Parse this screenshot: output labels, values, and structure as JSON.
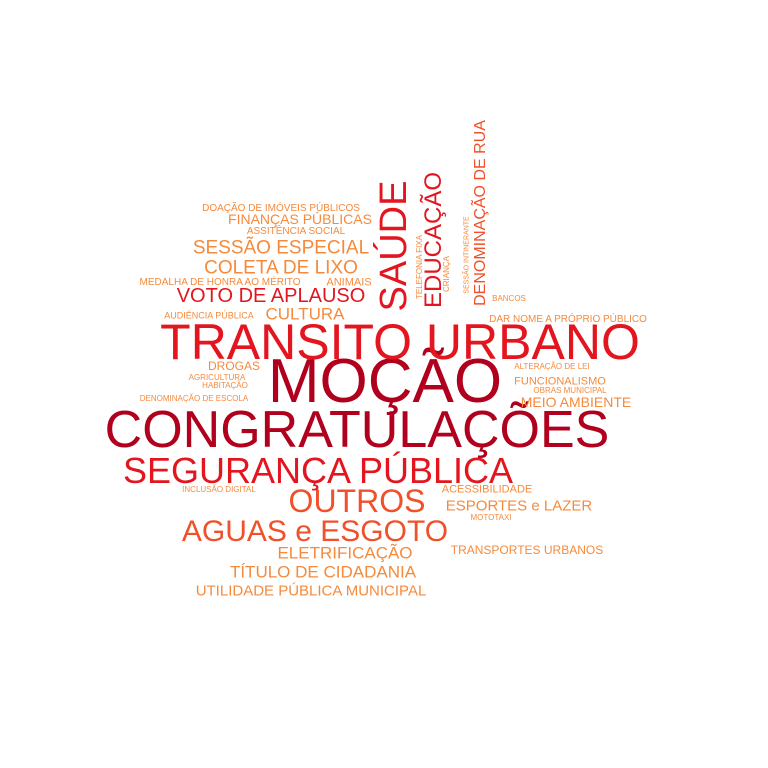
{
  "palette": {
    "dark_red": "#b0001e",
    "red": "#e3151f",
    "orange_red": "#f0502a",
    "orange": "#f58a3c"
  },
  "words": [
    {
      "text": "CONGRATULAÇÕES",
      "color": "#b0001e",
      "weight": 52
    },
    {
      "text": "MOÇÃO",
      "color": "#b0001e",
      "weight": 62
    },
    {
      "text": "TRANSITO URBANO",
      "color": "#e3151f",
      "weight": 50
    },
    {
      "text": "SEGURANÇA PÚBLICA",
      "color": "#e3151f",
      "weight": 36
    },
    {
      "text": "SAÚDE",
      "color": "#e3151f",
      "weight": 38
    },
    {
      "text": "EDUCAÇÃO",
      "color": "#e3151f",
      "weight": 24
    },
    {
      "text": "OUTROS",
      "color": "#f0502a",
      "weight": 32
    },
    {
      "text": "AGUAS e ESGOTO",
      "color": "#f0502a",
      "weight": 30
    },
    {
      "text": "VOTO DE APLAUSO",
      "color": "#e3151f",
      "weight": 20
    },
    {
      "text": "DENOMINAÇÃO DE RUA",
      "color": "#f0502a",
      "weight": 16
    },
    {
      "text": "SESSÃO ESPECIAL",
      "color": "#f58a3c",
      "weight": 19
    },
    {
      "text": "COLETA DE LIXO",
      "color": "#f58a3c",
      "weight": 19
    },
    {
      "text": "CULTURA",
      "color": "#f58a3c",
      "weight": 17
    },
    {
      "text": "ELETRIFICAÇÃO",
      "color": "#f58a3c",
      "weight": 17
    },
    {
      "text": "TÍTULO DE CIDADANIA",
      "color": "#f58a3c",
      "weight": 17
    },
    {
      "text": "UTILIDADE PÚBLICA MUNICIPAL",
      "color": "#f58a3c",
      "weight": 15
    },
    {
      "text": "FINANÇAS PÚBLICAS",
      "color": "#f58a3c",
      "weight": 14
    },
    {
      "text": "MEIO AMBIENTE",
      "color": "#f58a3c",
      "weight": 14
    },
    {
      "text": "ESPORTES e LAZER",
      "color": "#f58a3c",
      "weight": 15
    },
    {
      "text": "TRANSPORTES URBANOS",
      "color": "#f58a3c",
      "weight": 12
    },
    {
      "text": "FUNCIONALISMO",
      "color": "#f58a3c",
      "weight": 11
    },
    {
      "text": "DROGAS",
      "color": "#f58a3c",
      "weight": 12
    },
    {
      "text": "ACESSIBILIDADE",
      "color": "#f58a3c",
      "weight": 11
    },
    {
      "text": "DAR NOME A PRÓPRIO PÚBLICO",
      "color": "#f58a3c",
      "weight": 10
    },
    {
      "text": "ASSITÊNCIA SOCIAL",
      "color": "#f58a3c",
      "weight": 10
    },
    {
      "text": "DOAÇÃO DE IMÓVEIS  PÚBLICOS",
      "color": "#f58a3c",
      "weight": 10
    },
    {
      "text": "MEDALHA DE HONRA AO MÉRITO",
      "color": "#f58a3c",
      "weight": 10
    },
    {
      "text": "ANIMAIS",
      "color": "#f58a3c",
      "weight": 11
    },
    {
      "text": "AUDIÊNCIA PÚBLICA",
      "color": "#f58a3c",
      "weight": 9
    },
    {
      "text": "AGRICULTURA",
      "color": "#f58a3c",
      "weight": 8
    },
    {
      "text": "HABITAÇÃO",
      "color": "#f58a3c",
      "weight": 8
    },
    {
      "text": "DENOMINAÇÃO DE ESCOLA",
      "color": "#f58a3c",
      "weight": 8
    },
    {
      "text": "INCLUSÃO DIGITAL",
      "color": "#f58a3c",
      "weight": 8
    },
    {
      "text": "ALTERAÇÃO DE LEI",
      "color": "#f58a3c",
      "weight": 8
    },
    {
      "text": "OBRAS MUNICIPAL",
      "color": "#f58a3c",
      "weight": 8
    },
    {
      "text": "MOTOTAXI",
      "color": "#f58a3c",
      "weight": 8
    },
    {
      "text": "BANCOS",
      "color": "#f58a3c",
      "weight": 8
    },
    {
      "text": "TELEFONIA FIXA",
      "color": "#f58a3c",
      "weight": 8
    },
    {
      "text": "CRIANÇA",
      "color": "#f58a3c",
      "weight": 8
    },
    {
      "text": "SESSÃO INTINERANTE",
      "color": "#f58a3c",
      "weight": 7
    }
  ]
}
